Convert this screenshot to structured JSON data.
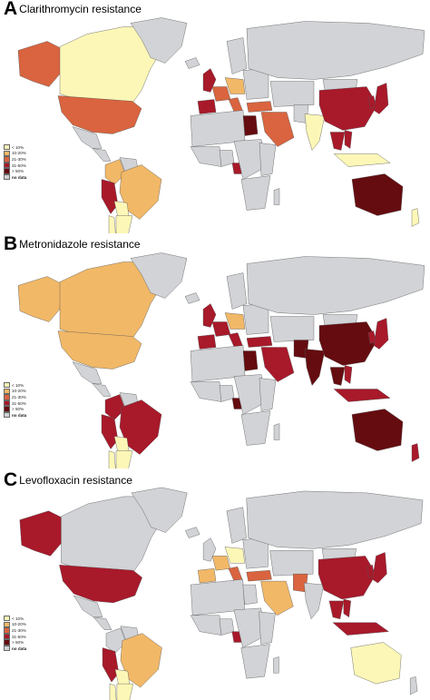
{
  "palette": {
    "lt10": "#fdf7b7",
    "p10_20": "#f1b867",
    "p21_30": "#d9643f",
    "p31_50": "#a8192a",
    "gt50": "#650c10",
    "nodata": "#d1d3d6",
    "ocean": "#ffffff",
    "border": "#555555"
  },
  "legend": [
    {
      "key": "lt10",
      "label": "< 10%"
    },
    {
      "key": "p10_20",
      "label": "10-20%"
    },
    {
      "key": "p21_30",
      "label": "21-30%"
    },
    {
      "key": "p31_50",
      "label": "31-50%"
    },
    {
      "key": "gt50",
      "label": "> 50%"
    },
    {
      "key": "nodata",
      "label": "no data"
    }
  ],
  "panels": [
    {
      "letter": "A",
      "title": "Clarithromycin resistance",
      "countries": {
        "alaska": "p21_30",
        "canada": "lt10",
        "usa": "p21_30",
        "mexico": "nodata",
        "central_america": "nodata",
        "colombia": "p10_20",
        "venezuela": "nodata",
        "peru": "p31_50",
        "brazil": "p10_20",
        "bolivia": "lt10",
        "chile": "lt10",
        "argentina": "lt10",
        "greenland": "nodata",
        "iceland": "nodata",
        "uk": "p31_50",
        "iberia": "p31_50",
        "france": "p21_30",
        "central_europe": "p10_20",
        "italy": "p21_30",
        "scandinavia": "nodata",
        "eastern_europe": "nodata",
        "russia": "nodata",
        "turkey": "p21_30",
        "middle_east": "p21_30",
        "north_africa": "nodata",
        "egypt": "gt50",
        "west_africa": "nodata",
        "nigeria": "nodata",
        "cameroon": "p31_50",
        "central_africa": "nodata",
        "east_africa": "nodata",
        "southern_africa": "nodata",
        "madagascar": "nodata",
        "central_asia": "nodata",
        "india": "lt10",
        "pakistan": "nodata",
        "china": "p31_50",
        "mongolia": "nodata",
        "korea": "p31_50",
        "japan": "p31_50",
        "se_asia": "p31_50",
        "vietnam": "p31_50",
        "indonesia": "lt10",
        "australia": "gt50",
        "new_zealand": "lt10"
      }
    },
    {
      "letter": "B",
      "title": "Metronidazole resistance",
      "countries": {
        "alaska": "p10_20",
        "canada": "p10_20",
        "usa": "p10_20",
        "mexico": "nodata",
        "central_america": "nodata",
        "colombia": "p31_50",
        "venezuela": "nodata",
        "peru": "p31_50",
        "brazil": "p31_50",
        "bolivia": "lt10",
        "chile": "lt10",
        "argentina": "lt10",
        "greenland": "nodata",
        "iceland": "nodata",
        "uk": "p31_50",
        "iberia": "p31_50",
        "france": "p31_50",
        "central_europe": "p10_20",
        "italy": "p31_50",
        "scandinavia": "nodata",
        "eastern_europe": "nodata",
        "russia": "nodata",
        "turkey": "p31_50",
        "middle_east": "p31_50",
        "north_africa": "nodata",
        "egypt": "gt50",
        "west_africa": "nodata",
        "nigeria": "nodata",
        "cameroon": "gt50",
        "central_africa": "nodata",
        "east_africa": "nodata",
        "southern_africa": "nodata",
        "madagascar": "nodata",
        "central_asia": "nodata",
        "india": "gt50",
        "pakistan": "gt50",
        "china": "gt50",
        "mongolia": "nodata",
        "korea": "p31_50",
        "japan": "p31_50",
        "se_asia": "gt50",
        "vietnam": "p31_50",
        "indonesia": "p31_50",
        "australia": "gt50",
        "new_zealand": "p31_50"
      }
    },
    {
      "letter": "C",
      "title": "Levofloxacin resistance",
      "countries": {
        "alaska": "p31_50",
        "canada": "nodata",
        "usa": "p31_50",
        "mexico": "nodata",
        "central_america": "nodata",
        "colombia": "nodata",
        "venezuela": "nodata",
        "peru": "p31_50",
        "brazil": "p10_20",
        "bolivia": "lt10",
        "chile": "lt10",
        "argentina": "lt10",
        "greenland": "nodata",
        "iceland": "nodata",
        "uk": "nodata",
        "iberia": "p10_20",
        "france": "p10_20",
        "central_europe": "lt10",
        "italy": "p21_30",
        "scandinavia": "nodata",
        "eastern_europe": "nodata",
        "russia": "nodata",
        "turkey": "p21_30",
        "middle_east": "p10_20",
        "north_africa": "nodata",
        "egypt": "nodata",
        "west_africa": "nodata",
        "nigeria": "nodata",
        "cameroon": "p31_50",
        "central_africa": "nodata",
        "east_africa": "nodata",
        "southern_africa": "nodata",
        "madagascar": "nodata",
        "central_asia": "nodata",
        "india": "nodata",
        "pakistan": "p21_30",
        "china": "p31_50",
        "mongolia": "nodata",
        "korea": "p31_50",
        "japan": "p31_50",
        "se_asia": "p31_50",
        "vietnam": "p31_50",
        "indonesia": "p31_50",
        "australia": "lt10",
        "new_zealand": "nodata"
      }
    }
  ]
}
